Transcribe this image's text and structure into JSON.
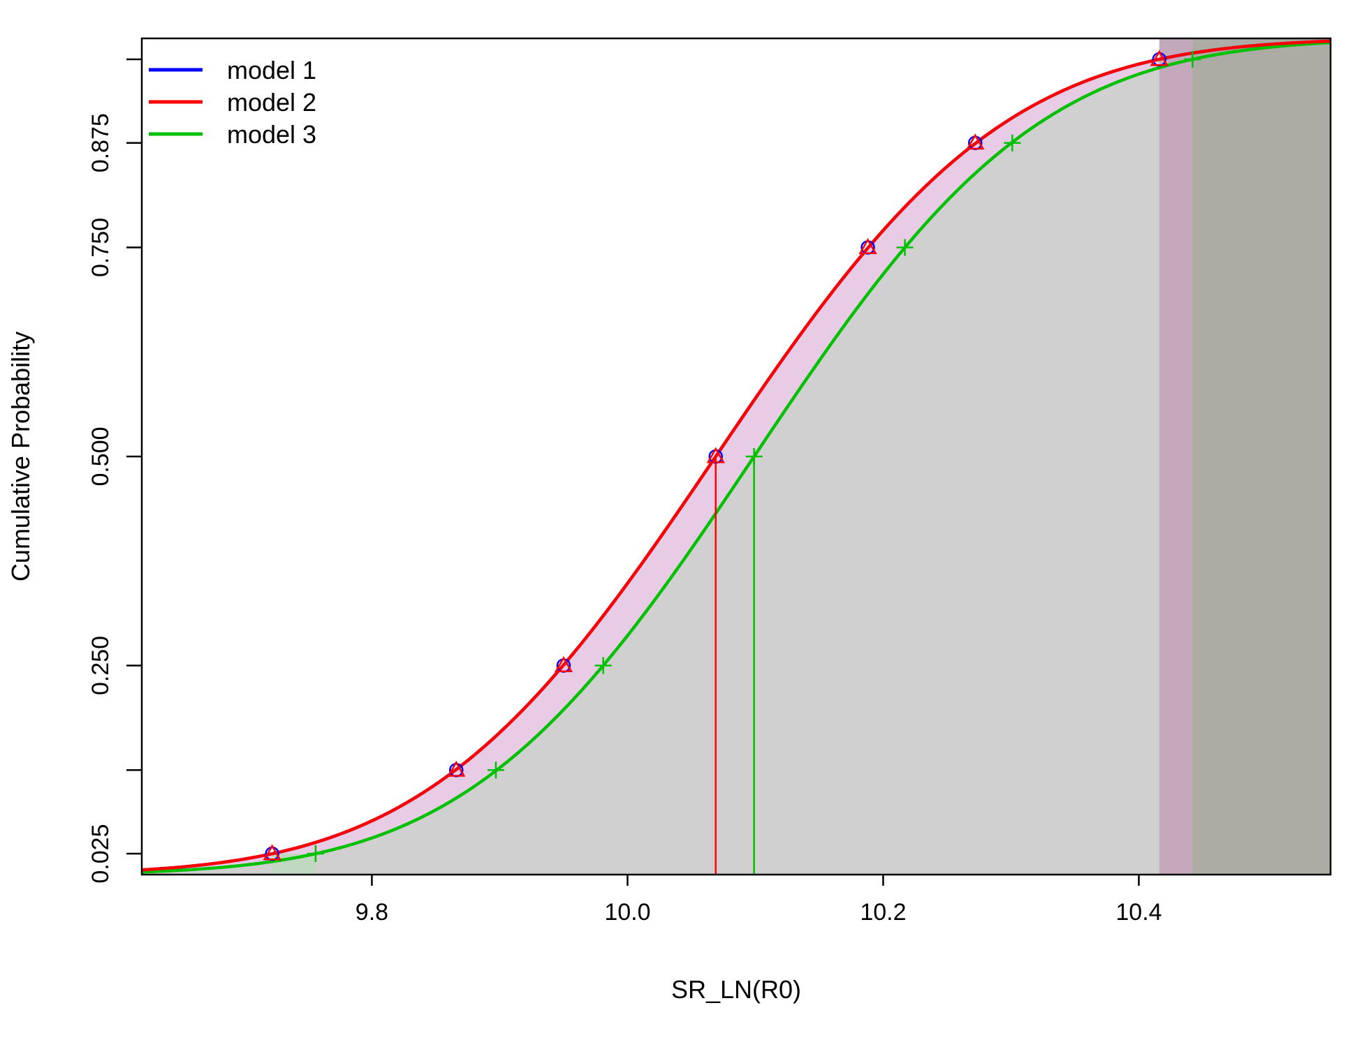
{
  "chart_data": {
    "type": "line",
    "xlabel": "SR_LN(R0)",
    "ylabel": "Cumulative Probability",
    "xlim": [
      9.62,
      10.55
    ],
    "ylim": [
      0.0,
      1.0
    ],
    "x_ticks": [
      9.8,
      10.0,
      10.2,
      10.4
    ],
    "x_tick_labels": [
      "9.8",
      "10.0",
      "10.2",
      "10.4"
    ],
    "y_ticks": [
      0.025,
      0.125,
      0.25,
      0.5,
      0.75,
      0.875,
      0.975
    ],
    "y_tick_labels": [
      "0.025",
      "",
      "0.250",
      "0.500",
      "0.750",
      "0.875",
      ""
    ],
    "legend_position": "top-left",
    "grid": false,
    "series": [
      {
        "name": "model 1",
        "color": "#0000ff",
        "marker": "circle",
        "mean": 10.069,
        "sd": 0.177,
        "quantile_points": {
          "x": [
            9.722,
            9.866,
            9.95,
            10.069,
            10.188,
            10.272,
            10.416
          ],
          "y": [
            0.025,
            0.125,
            0.25,
            0.5,
            0.75,
            0.875,
            0.975
          ]
        },
        "median": 10.069
      },
      {
        "name": "model 2",
        "color": "#ff0000",
        "marker": "triangle",
        "mean": 10.069,
        "sd": 0.177,
        "quantile_points": {
          "x": [
            9.722,
            9.866,
            9.95,
            10.069,
            10.188,
            10.272,
            10.416
          ],
          "y": [
            0.025,
            0.125,
            0.25,
            0.5,
            0.75,
            0.875,
            0.975
          ]
        },
        "median": 10.069
      },
      {
        "name": "model 3",
        "color": "#00c000",
        "marker": "plus",
        "mean": 10.099,
        "sd": 0.175,
        "quantile_points": {
          "x": [
            9.756,
            9.897,
            9.981,
            10.099,
            10.217,
            10.301,
            10.442
          ],
          "y": [
            0.025,
            0.125,
            0.25,
            0.5,
            0.75,
            0.875,
            0.975
          ]
        },
        "median": 10.099
      }
    ],
    "shading": {
      "band_fill": "#e8cce6",
      "under_fill": "#d0d0d0",
      "tail_fill_inner": "#c4a9bc",
      "tail_fill_outer": "#acaca4",
      "low_tail_fill": "#c0d8c0"
    }
  }
}
